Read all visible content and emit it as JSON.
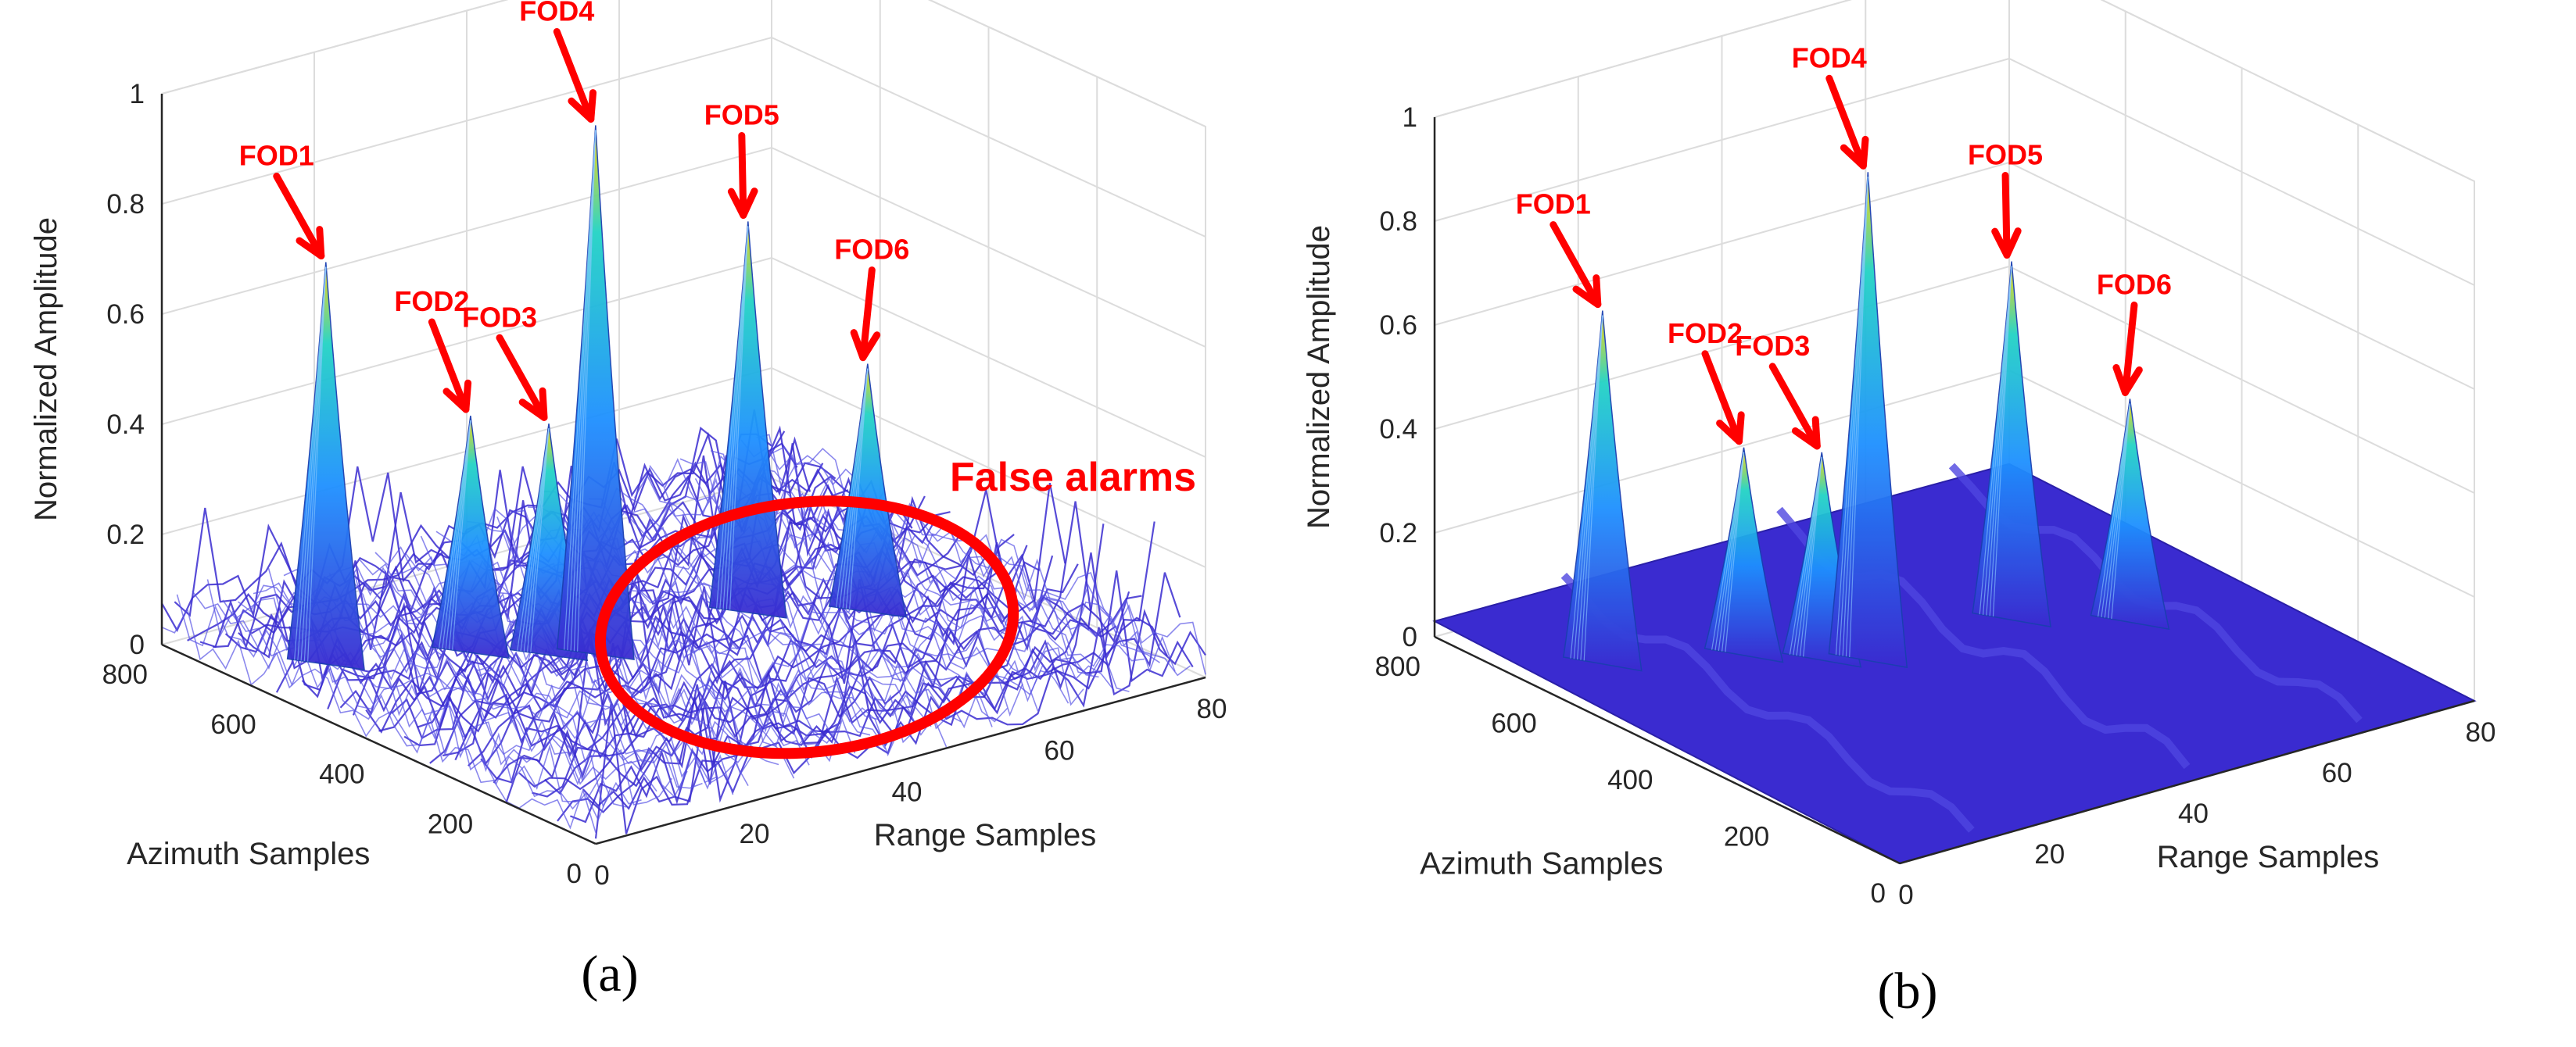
{
  "chart_data": [
    {
      "type": "surface",
      "panel": "(a)",
      "xlabel": "Range Samples",
      "ylabel": "Azimuth Samples",
      "zlabel": "Normalized Amplitude",
      "xlim": [
        0,
        80
      ],
      "ylim": [
        0,
        800
      ],
      "zlim": [
        0,
        1
      ],
      "x_ticks": [
        "0",
        "20",
        "40",
        "60",
        "80"
      ],
      "y_ticks": [
        "0",
        "200",
        "400",
        "600",
        "800"
      ],
      "z_ticks": [
        "0",
        "0.2",
        "0.4",
        "0.6",
        "0.8",
        "1"
      ],
      "grid": true,
      "noise_floor": 0.1,
      "peaks": [
        {
          "label": "FOD1",
          "range": 8,
          "azimuth": 610,
          "amplitude": 0.75
        },
        {
          "label": "FOD2",
          "range": 22,
          "azimuth": 540,
          "amplitude": 0.45
        },
        {
          "label": "FOD3",
          "range": 28,
          "azimuth": 480,
          "amplitude": 0.44
        },
        {
          "label": "FOD4",
          "range": 32,
          "azimuth": 450,
          "amplitude": 0.98
        },
        {
          "label": "FOD5",
          "range": 52,
          "azimuth": 450,
          "amplitude": 0.73
        },
        {
          "label": "FOD6",
          "range": 62,
          "azimuth": 370,
          "amplitude": 0.47
        }
      ],
      "annotation": "False alarms"
    },
    {
      "type": "surface",
      "panel": "(b)",
      "xlabel": "Range Samples",
      "ylabel": "Azimuth Samples",
      "zlabel": "Normalized Amplitude",
      "xlim": [
        0,
        80
      ],
      "ylim": [
        0,
        800
      ],
      "zlim": [
        0,
        1
      ],
      "x_ticks": [
        "0",
        "20",
        "40",
        "60",
        "80"
      ],
      "y_ticks": [
        "0",
        "200",
        "400",
        "600",
        "800"
      ],
      "z_ticks": [
        "0",
        "0.2",
        "0.4",
        "0.6",
        "0.8",
        "1"
      ],
      "grid": true,
      "noise_floor": 0.03,
      "peaks": [
        {
          "label": "FOD1",
          "range": 8,
          "azimuth": 610,
          "amplitude": 0.7
        },
        {
          "label": "FOD2",
          "range": 22,
          "azimuth": 540,
          "amplitude": 0.42
        },
        {
          "label": "FOD3",
          "range": 28,
          "azimuth": 480,
          "amplitude": 0.42
        },
        {
          "label": "FOD4",
          "range": 32,
          "azimuth": 450,
          "amplitude": 0.96
        },
        {
          "label": "FOD5",
          "range": 52,
          "azimuth": 450,
          "amplitude": 0.71
        },
        {
          "label": "FOD6",
          "range": 62,
          "azimuth": 370,
          "amplitude": 0.45
        }
      ]
    }
  ],
  "colors": {
    "annotation": "#ff0000",
    "floor": "#3a2bd0",
    "peak_low": "#1e90ff",
    "peak_mid": "#22d3c5",
    "peak_high": "#ffd400",
    "grid": "#dcdcdc",
    "axis": "#262626"
  }
}
